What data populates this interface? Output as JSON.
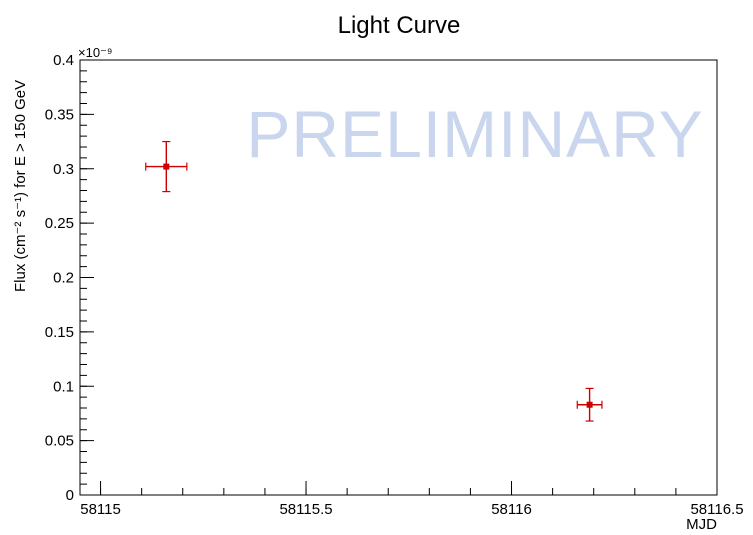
{
  "chart_data": {
    "type": "scatter",
    "title": "Light Curve",
    "xlabel": "MJD",
    "ylabel": "Flux (cm⁻² s⁻¹) for E > 150 GeV",
    "y_exponent_label": "×10⁻⁹",
    "xlim": [
      58114.95,
      58116.5
    ],
    "ylim": [
      0,
      0.4
    ],
    "x_ticks": [
      58115,
      58115.5,
      58116,
      58116.5
    ],
    "x_tick_labels": [
      "58115",
      "58115.5",
      "58116",
      "58116.5"
    ],
    "y_ticks": [
      0,
      0.05,
      0.1,
      0.15,
      0.2,
      0.25,
      0.3,
      0.35,
      0.4
    ],
    "y_tick_labels": [
      "0",
      "0.05",
      "0.1",
      "0.15",
      "0.2",
      "0.25",
      "0.3",
      "0.35",
      "0.4"
    ],
    "grid": false,
    "points": [
      {
        "x": 58115.16,
        "y": 0.302,
        "x_err": 0.05,
        "y_err": 0.023
      },
      {
        "x": 58116.19,
        "y": 0.083,
        "x_err": 0.03,
        "y_err": 0.015
      }
    ],
    "marker_color": "#cc0000",
    "watermark": "PRELIMINARY",
    "watermark_color": "#c9d6ee"
  }
}
